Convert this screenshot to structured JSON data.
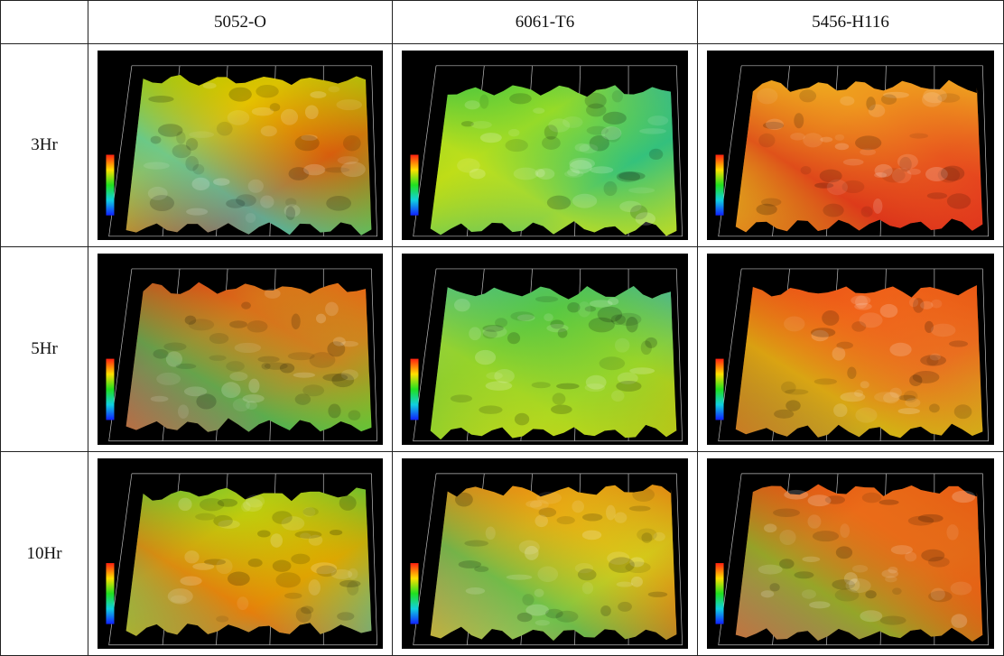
{
  "table": {
    "column_headers": [
      "5052-O",
      "6061-T6",
      "5456-H116"
    ],
    "row_labels": [
      "3Hr",
      "5Hr",
      "10Hr"
    ]
  }
}
